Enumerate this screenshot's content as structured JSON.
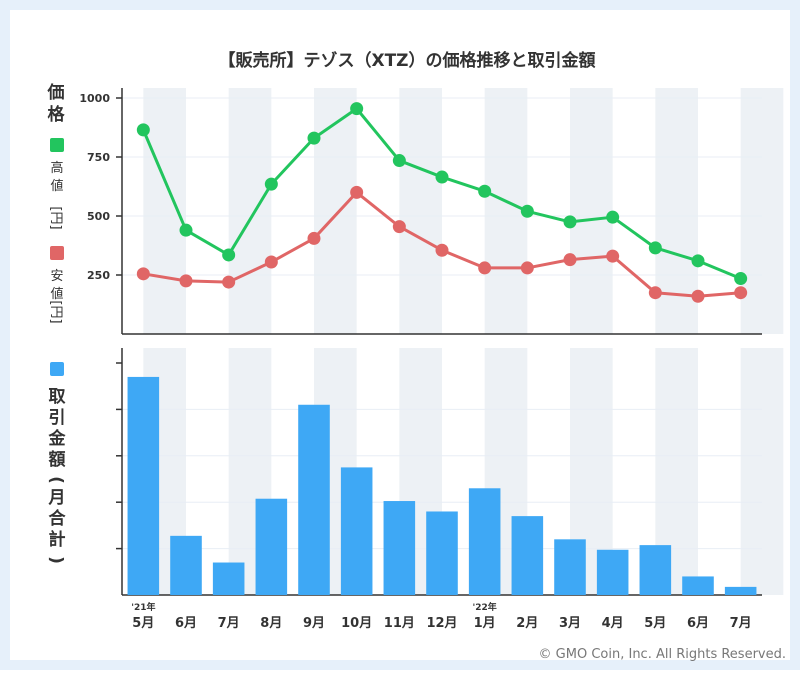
{
  "title": "【販売所】テゾス（XTZ）の価格推移と取引金額",
  "copyright": "© GMO Coin, Inc. All Rights Reserved.",
  "colors": {
    "high": "#22c55e",
    "low": "#e06666",
    "volume": "#3ea8f5",
    "axis": "#333333",
    "band": "#edf1f5"
  },
  "legend": {
    "price_heading": "価格",
    "high_label": "高値",
    "low_label": "安値",
    "unit_label": "[円]",
    "volume_label": "取引金額(月合計)"
  },
  "chart_data": [
    {
      "type": "line",
      "categories": [
        "5月",
        "6月",
        "7月",
        "8月",
        "9月",
        "10月",
        "11月",
        "12月",
        "1月",
        "2月",
        "3月",
        "4月",
        "5月",
        "6月",
        "7月"
      ],
      "year_markers": [
        {
          "index": 0,
          "label": "'21年"
        },
        {
          "index": 8,
          "label": "'22年"
        }
      ],
      "ylabel": "価格",
      "yticks": [
        250,
        500,
        750,
        1000
      ],
      "ylim": [
        0,
        1000
      ],
      "series": [
        {
          "name": "高値",
          "values": [
            865,
            440,
            335,
            635,
            830,
            955,
            735,
            665,
            605,
            520,
            475,
            495,
            365,
            310,
            235
          ]
        },
        {
          "name": "安値",
          "values": [
            255,
            225,
            220,
            305,
            405,
            600,
            455,
            355,
            280,
            280,
            315,
            330,
            175,
            160,
            175
          ]
        }
      ]
    },
    {
      "type": "bar",
      "categories": [
        "5月",
        "6月",
        "7月",
        "8月",
        "9月",
        "10月",
        "11月",
        "12月",
        "1月",
        "2月",
        "3月",
        "4月",
        "5月",
        "6月",
        "7月"
      ],
      "ylabel": "取引金額(月合計)",
      "ylim": [
        0,
        100
      ],
      "grid": true,
      "values": [
        94,
        25.5,
        14,
        41.5,
        82,
        55,
        40.5,
        36,
        46,
        34,
        24,
        19.5,
        21.5,
        8,
        3.5
      ]
    }
  ]
}
